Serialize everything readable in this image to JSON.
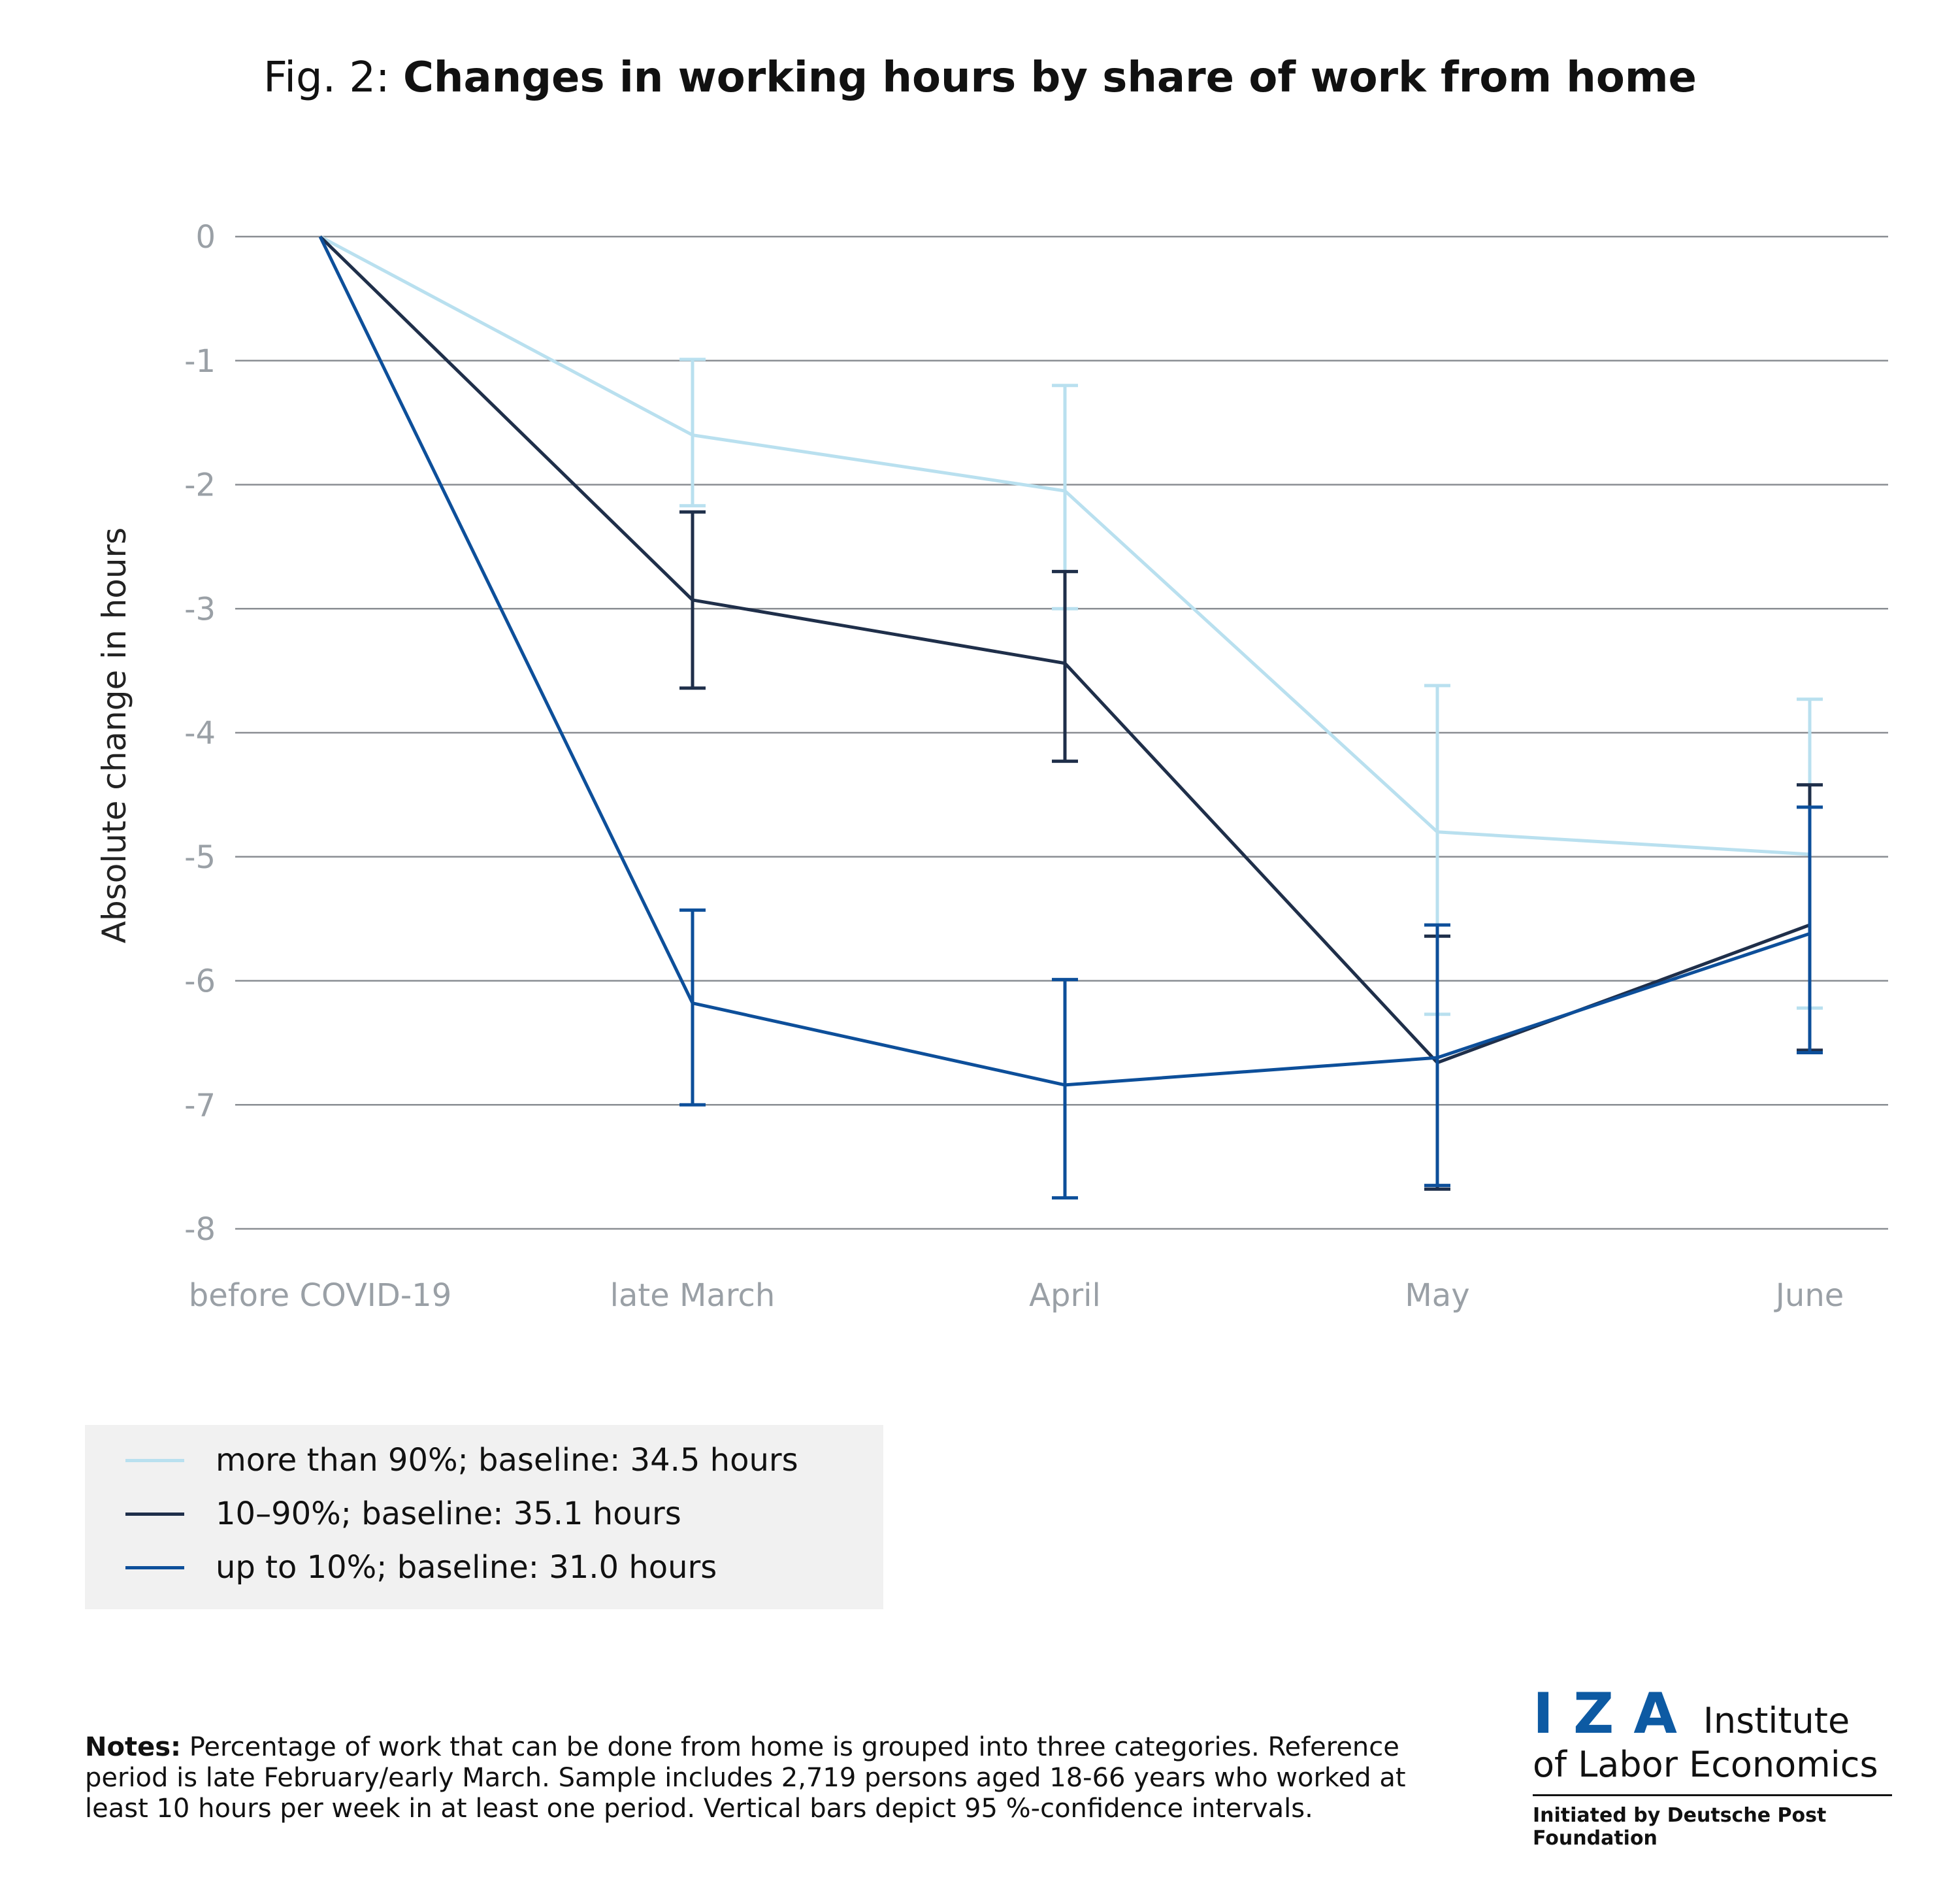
{
  "title": {
    "prefix": "Fig. 2:",
    "main": "Changes in working hours by share of work from home"
  },
  "chart_data": {
    "type": "line",
    "title": "Changes in working hours by share of work from home",
    "xlabel": "",
    "ylabel": "Absolute change in hours",
    "categories": [
      "before COVID-19",
      "late March",
      "April",
      "May",
      "June"
    ],
    "ylim": [
      -8,
      0
    ],
    "yticks": [
      0,
      -1,
      -2,
      -3,
      -4,
      -5,
      -6,
      -7,
      -8
    ],
    "grid": true,
    "error_bars": "95%-confidence intervals",
    "series": [
      {
        "name": "more than 90%; baseline: 34.5 hours",
        "color": "#b9e0ef",
        "values": [
          0,
          -1.6,
          -2.05,
          -4.8,
          -4.98
        ],
        "ci_low": [
          null,
          -2.17,
          -3.0,
          -6.27,
          -6.22
        ],
        "ci_high": [
          null,
          -0.99,
          -1.2,
          -3.62,
          -3.73
        ]
      },
      {
        "name": "10–90%; baseline: 35.1 hours",
        "color": "#1f2f4a",
        "values": [
          0,
          -2.93,
          -3.44,
          -6.66,
          -5.55
        ],
        "ci_low": [
          null,
          -3.64,
          -4.23,
          -7.68,
          -6.56
        ],
        "ci_high": [
          null,
          -2.22,
          -2.7,
          -5.64,
          -4.42
        ]
      },
      {
        "name": "up to 10%; baseline: 31.0 hours",
        "color": "#0d4f9a",
        "values": [
          0,
          -6.18,
          -6.84,
          -6.62,
          -5.62
        ],
        "ci_low": [
          null,
          -7.0,
          -7.75,
          -7.65,
          -6.58
        ],
        "ci_high": [
          null,
          -5.43,
          -5.99,
          -5.55,
          -4.6
        ]
      }
    ],
    "legend_position": "bottom-left"
  },
  "notes": {
    "label": "Notes:",
    "text": "Percentage of work that can be done from home is grouped into three categories. Reference period is late February/early March. Sample includes 2,719 persons aged 18-66 years who worked at least 10 hours per week in at least one period. Vertical bars depict 95 %-confidence intervals."
  },
  "logo": {
    "mark": "IZA",
    "line1": "Institute",
    "line2": "of Labor Economics",
    "tagline": "Initiated by Deutsche Post Foundation"
  }
}
